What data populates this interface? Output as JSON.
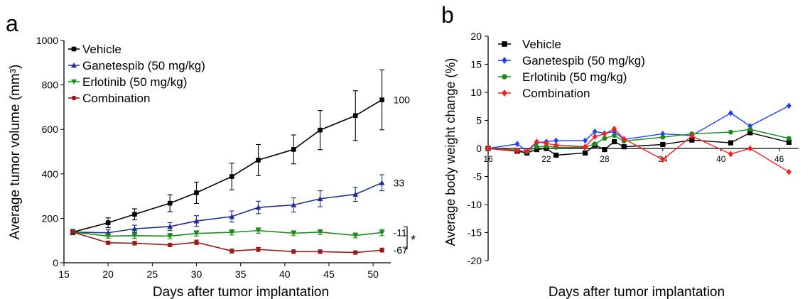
{
  "chart_data": [
    {
      "panel": "a",
      "type": "line",
      "title": "",
      "xlabel": "Days after tumor implantation",
      "ylabel": "Average tumor volume (mm³)",
      "xlim": [
        15,
        52
      ],
      "ylim": [
        0,
        1000
      ],
      "xticks": [
        15,
        20,
        25,
        30,
        35,
        40,
        45,
        50
      ],
      "yticks": [
        0,
        200,
        400,
        600,
        800,
        1000
      ],
      "grid": false,
      "legend_position": "top-left",
      "series": [
        {
          "name": "Vehicle",
          "color": "#000000",
          "marker": "square",
          "x": [
            16,
            20,
            23,
            27,
            30,
            34,
            37,
            41,
            44,
            48,
            51
          ],
          "y": [
            138,
            180,
            218,
            268,
            315,
            388,
            462,
            510,
            597,
            662,
            733
          ],
          "err": [
            12,
            22,
            25,
            38,
            48,
            60,
            70,
            65,
            88,
            112,
            135
          ],
          "end_label": "100"
        },
        {
          "name": "Ganetespib (50 mg/kg)",
          "color": "#1f2f8f",
          "marker": "triangle-up",
          "x": [
            16,
            20,
            23,
            27,
            30,
            34,
            37,
            41,
            44,
            48,
            51
          ],
          "y": [
            138,
            135,
            153,
            163,
            188,
            208,
            249,
            260,
            288,
            308,
            360
          ],
          "err": [
            10,
            14,
            16,
            18,
            24,
            25,
            28,
            32,
            36,
            32,
            36
          ],
          "end_label": "33"
        },
        {
          "name": "Erlotinib (50 mg/kg)",
          "color": "#1a8c1a",
          "marker": "triangle-down",
          "x": [
            16,
            20,
            23,
            27,
            30,
            34,
            37,
            41,
            44,
            48,
            51
          ],
          "y": [
            138,
            120,
            122,
            120,
            132,
            137,
            145,
            133,
            138,
            123,
            136
          ],
          "err": [
            9,
            10,
            12,
            12,
            12,
            12,
            12,
            11,
            11,
            11,
            14
          ],
          "end_label": "-11"
        },
        {
          "name": "Combination",
          "color": "#9b1b1b",
          "marker": "circle",
          "x": [
            16,
            20,
            23,
            27,
            30,
            34,
            37,
            41,
            44,
            48,
            51
          ],
          "y": [
            138,
            90,
            88,
            80,
            92,
            53,
            60,
            50,
            50,
            46,
            57
          ],
          "err": [
            8,
            7,
            8,
            7,
            10,
            9,
            9,
            8,
            8,
            7,
            9
          ],
          "end_label": "-67"
        }
      ],
      "significance_marker": "*"
    },
    {
      "panel": "b",
      "type": "line",
      "title": "",
      "xlabel": "Days after tumor implantation",
      "ylabel": "Average body weight change (%)",
      "xlim": [
        16,
        48
      ],
      "ylim": [
        -20,
        20
      ],
      "xticks": [
        16,
        22,
        28,
        34,
        40,
        46
      ],
      "yticks": [
        -20,
        -15,
        -10,
        -5,
        0,
        5,
        10,
        15,
        20
      ],
      "grid": false,
      "legend_position": "top-left",
      "series": [
        {
          "name": "Vehicle",
          "color": "#000000",
          "marker": "square",
          "x": [
            16,
            19,
            20,
            21,
            22,
            23,
            26,
            27,
            28,
            29,
            30,
            34,
            37,
            41,
            43,
            47
          ],
          "y": [
            0,
            -0.5,
            -0.8,
            -0.2,
            0,
            -1.2,
            -0.8,
            0.6,
            -0.2,
            1.2,
            0.3,
            0.7,
            1.5,
            1,
            2.8,
            1.1
          ]
        },
        {
          "name": "Ganetespib (50 mg/kg)",
          "color": "#1f3fff",
          "marker": "diamond",
          "x": [
            16,
            19,
            20,
            21,
            22,
            23,
            26,
            27,
            28,
            29,
            30,
            34,
            37,
            41,
            43,
            47
          ],
          "y": [
            0,
            0.8,
            -0.5,
            1,
            1.2,
            1.4,
            1.4,
            3,
            2.7,
            3,
            1.6,
            2.6,
            2.3,
            6.3,
            4,
            7.6
          ]
        },
        {
          "name": "Erlotinib (50 mg/kg)",
          "color": "#1a8c1a",
          "marker": "circle",
          "x": [
            16,
            19,
            20,
            21,
            22,
            23,
            26,
            27,
            28,
            29,
            30,
            34,
            37,
            41,
            43,
            47
          ],
          "y": [
            0,
            -0.3,
            -0.6,
            0.3,
            0.4,
            0.2,
            0.2,
            0.8,
            1.8,
            2.3,
            1.3,
            2,
            2.6,
            2.9,
            3.4,
            1.8
          ]
        },
        {
          "name": "Combination",
          "color": "#ff1a1a",
          "marker": "diamond",
          "x": [
            16,
            19,
            20,
            21,
            22,
            23,
            26,
            27,
            28,
            29,
            30,
            34,
            37,
            41,
            43,
            47
          ],
          "y": [
            0,
            -0.4,
            -0.5,
            1.2,
            0.9,
            0.6,
            0.3,
            2.1,
            2.6,
            3.5,
            1.7,
            -2,
            2.2,
            -1,
            0,
            -4.2
          ]
        }
      ]
    }
  ],
  "panel_labels": {
    "a": "a",
    "b": "b"
  }
}
